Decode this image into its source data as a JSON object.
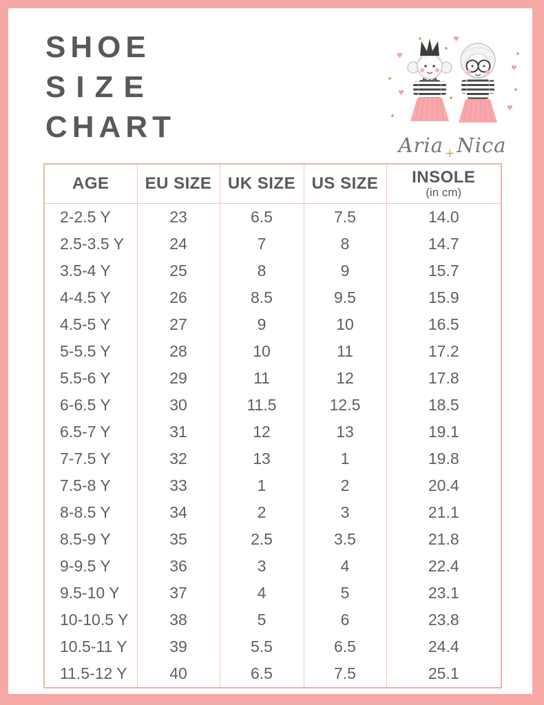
{
  "page": {
    "title_lines": [
      "SHOE",
      "SIZE",
      "CHART"
    ]
  },
  "brand": {
    "name_first": "Aria",
    "plus": "+",
    "name_second": "Nica",
    "illustration_icons": [
      "girl-with-crown-icon",
      "girl-with-glasses-icon",
      "heart-icon",
      "sparkle-dot-icon"
    ]
  },
  "table": {
    "headers": [
      "AGE",
      "EU SIZE",
      "UK SIZE",
      "US SIZE",
      "INSOLE"
    ],
    "insole_subheader": "(in cm)",
    "rows": [
      [
        "2-2.5 Y",
        "23",
        "6.5",
        "7.5",
        "14.0"
      ],
      [
        "2.5-3.5 Y",
        "24",
        "7",
        "8",
        "14.7"
      ],
      [
        "3.5-4 Y",
        "25",
        "8",
        "9",
        "15.7"
      ],
      [
        "4-4.5 Y",
        "26",
        "8.5",
        "9.5",
        "15.9"
      ],
      [
        "4.5-5 Y",
        "27",
        "9",
        "10",
        "16.5"
      ],
      [
        "5-5.5 Y",
        "28",
        "10",
        "11",
        "17.2"
      ],
      [
        "5.5-6 Y",
        "29",
        "11",
        "12",
        "17.8"
      ],
      [
        "6-6.5 Y",
        "30",
        "11.5",
        "12.5",
        "18.5"
      ],
      [
        "6.5-7 Y",
        "31",
        "12",
        "13",
        "19.1"
      ],
      [
        "7-7.5 Y",
        "32",
        "13",
        "1",
        "19.8"
      ],
      [
        "7.5-8 Y",
        "33",
        "1",
        "2",
        "20.4"
      ],
      [
        "8-8.5 Y",
        "34",
        "2",
        "3",
        "21.1"
      ],
      [
        "8.5-9 Y",
        "35",
        "2.5",
        "3.5",
        "21.8"
      ],
      [
        "9-9.5 Y",
        "36",
        "3",
        "4",
        "22.4"
      ],
      [
        "9.5-10 Y",
        "37",
        "4",
        "5",
        "23.1"
      ],
      [
        "10-10.5 Y",
        "38",
        "5",
        "6",
        "23.8"
      ],
      [
        "10.5-11 Y",
        "39",
        "5.5",
        "6.5",
        "24.4"
      ],
      [
        "11.5-12 Y",
        "40",
        "6.5",
        "7.5",
        "25.1"
      ]
    ]
  },
  "colors": {
    "frame_pink": "#F6A8A5",
    "table_outer_border": "#F1AFAC",
    "table_inner_border": "#F4C2BF",
    "heading_gray": "#58595B",
    "text_gray": "#5E5F61",
    "tutu_pink": "#F9A8AC",
    "stripe_dark": "#474747",
    "accent_gold": "#C9A23E",
    "script_gray": "#757575"
  }
}
